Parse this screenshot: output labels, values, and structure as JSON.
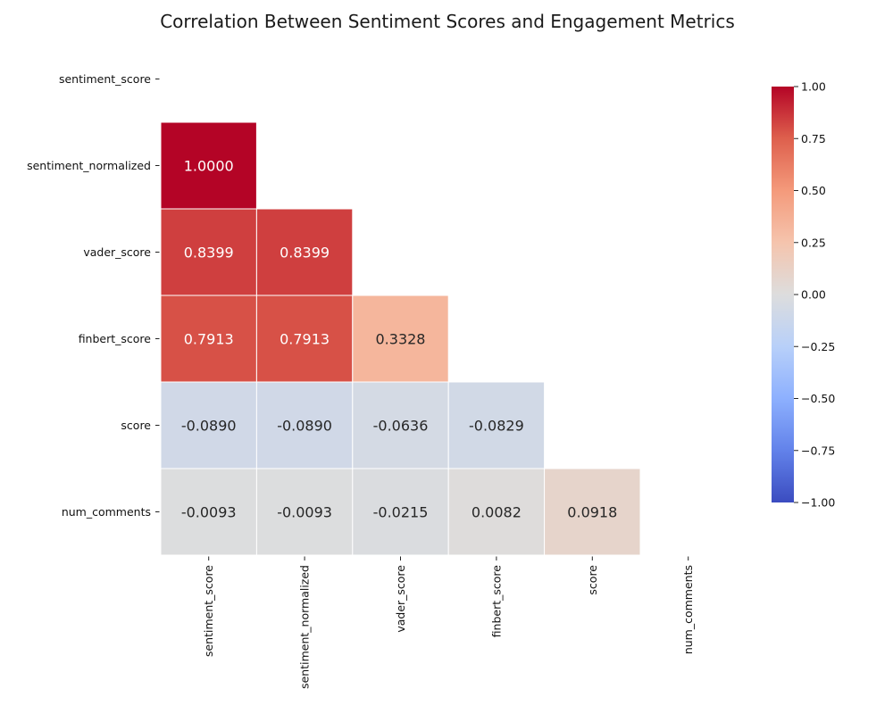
{
  "chart_data": {
    "type": "heatmap",
    "title": "Correlation Between Sentiment Scores and Engagement Metrics",
    "xlabel": "",
    "ylabel": "",
    "variables": [
      "sentiment_score",
      "sentiment_normalized",
      "vader_score",
      "finbert_score",
      "score",
      "num_comments"
    ],
    "mask": "upper triangle including diagonal",
    "cells": [
      {
        "row": "sentiment_normalized",
        "col": "sentiment_score",
        "value": 1.0,
        "label": "1.0000"
      },
      {
        "row": "vader_score",
        "col": "sentiment_score",
        "value": 0.8399,
        "label": "0.8399"
      },
      {
        "row": "vader_score",
        "col": "sentiment_normalized",
        "value": 0.8399,
        "label": "0.8399"
      },
      {
        "row": "finbert_score",
        "col": "sentiment_score",
        "value": 0.7913,
        "label": "0.7913"
      },
      {
        "row": "finbert_score",
        "col": "sentiment_normalized",
        "value": 0.7913,
        "label": "0.7913"
      },
      {
        "row": "finbert_score",
        "col": "vader_score",
        "value": 0.3328,
        "label": "0.3328"
      },
      {
        "row": "score",
        "col": "sentiment_score",
        "value": -0.089,
        "label": "-0.0890"
      },
      {
        "row": "score",
        "col": "sentiment_normalized",
        "value": -0.089,
        "label": "-0.0890"
      },
      {
        "row": "score",
        "col": "vader_score",
        "value": -0.0636,
        "label": "-0.0636"
      },
      {
        "row": "score",
        "col": "finbert_score",
        "value": -0.0829,
        "label": "-0.0829"
      },
      {
        "row": "num_comments",
        "col": "sentiment_score",
        "value": -0.0093,
        "label": "-0.0093"
      },
      {
        "row": "num_comments",
        "col": "sentiment_normalized",
        "value": -0.0093,
        "label": "-0.0093"
      },
      {
        "row": "num_comments",
        "col": "vader_score",
        "value": -0.0215,
        "label": "-0.0215"
      },
      {
        "row": "num_comments",
        "col": "finbert_score",
        "value": 0.0082,
        "label": "0.0082"
      },
      {
        "row": "num_comments",
        "col": "score",
        "value": 0.0918,
        "label": "0.0918"
      }
    ],
    "colorbar": {
      "colormap": "coolwarm",
      "range": [
        -1.0,
        1.0
      ],
      "ticks": [
        1.0,
        0.75,
        0.5,
        0.25,
        0.0,
        -0.25,
        -0.5,
        -0.75,
        -1.0
      ],
      "tick_labels": [
        "1.00",
        "0.75",
        "0.50",
        "0.25",
        "0.00",
        "−0.25",
        "−0.50",
        "−0.75",
        "−1.00"
      ]
    },
    "grid": false
  }
}
